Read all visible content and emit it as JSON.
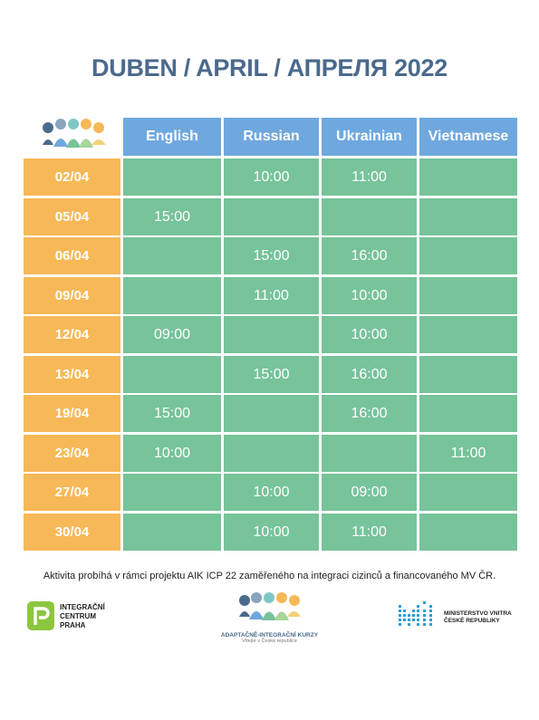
{
  "title": "DUBEN / APRIL / АПРЕЛЯ 2022",
  "columns": [
    "English",
    "Russian",
    "Ukrainian",
    "Vietnamese"
  ],
  "rows": [
    {
      "date": "02/04",
      "times": [
        "",
        "10:00",
        "11:00",
        ""
      ]
    },
    {
      "date": "05/04",
      "times": [
        "15:00",
        "",
        "",
        ""
      ]
    },
    {
      "date": "06/04",
      "times": [
        "",
        "15:00",
        "16:00",
        ""
      ]
    },
    {
      "date": "09/04",
      "times": [
        "",
        "11:00",
        "10:00",
        ""
      ]
    },
    {
      "date": "12/04",
      "times": [
        "09:00",
        "",
        "10:00",
        ""
      ]
    },
    {
      "date": "13/04",
      "times": [
        "",
        "15:00",
        "16:00",
        ""
      ]
    },
    {
      "date": "19/04",
      "times": [
        "15:00",
        "",
        "16:00",
        ""
      ]
    },
    {
      "date": "23/04",
      "times": [
        "10:00",
        "",
        "",
        "11:00"
      ]
    },
    {
      "date": "27/04",
      "times": [
        "",
        "10:00",
        "09:00",
        ""
      ]
    },
    {
      "date": "30/04",
      "times": [
        "",
        "10:00",
        "11:00",
        ""
      ]
    }
  ],
  "footnote": "Aktivita probíhá v rámci projektu AIK ICP 22 zaměřeného na integraci cizinců a financovaného MV ČR.",
  "logos": {
    "icp": {
      "lines": [
        "INTEGRAČNÍ",
        "CENTRUM",
        "PRAHA"
      ]
    },
    "aik": {
      "line1": "ADAPTAČNĚ-INTEGRAČNÍ KURZY",
      "line2": "Vítejte v České republice"
    },
    "mv": {
      "lines": [
        "MINISTERSTVO VNITRA",
        "ČESKÉ REPUBLIKY"
      ]
    }
  },
  "colors": {
    "header_blue": "#6fa8de",
    "date_orange": "#f7b857",
    "cell_green": "#77c39a",
    "title_navy": "#4a6a8c",
    "icp_green": "#8cc63f",
    "mv_blue": "#2a9fd8"
  }
}
